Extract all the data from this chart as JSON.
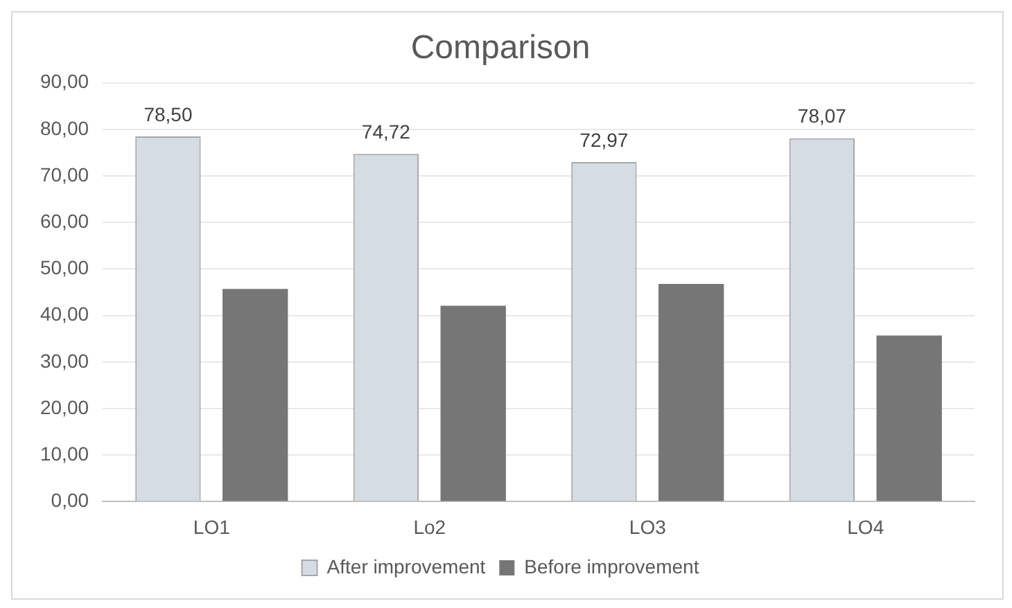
{
  "chart_data": {
    "type": "bar",
    "title": "Comparison",
    "categories": [
      "LO1",
      "Lo2",
      "LO3",
      "LO4"
    ],
    "series": [
      {
        "name": "After improvement",
        "color": "#d6dce4",
        "values": [
          78.5,
          74.72,
          72.97,
          78.07
        ],
        "value_labels": [
          "78,50",
          "74,72",
          "72,97",
          "78,07"
        ]
      },
      {
        "name": "Before improvement",
        "color": "#767676",
        "values": [
          45.7,
          42.1,
          46.8,
          35.7
        ]
      }
    ],
    "ylim": [
      0,
      90
    ],
    "yticks": [
      {
        "value": 0,
        "label": "0,00"
      },
      {
        "value": 10,
        "label": "10,00"
      },
      {
        "value": 20,
        "label": "20,00"
      },
      {
        "value": 30,
        "label": "30,00"
      },
      {
        "value": 40,
        "label": "40,00"
      },
      {
        "value": 50,
        "label": "50,00"
      },
      {
        "value": 60,
        "label": "60,00"
      },
      {
        "value": 70,
        "label": "70,00"
      },
      {
        "value": 80,
        "label": "80,00"
      },
      {
        "value": 90,
        "label": "90,00"
      }
    ],
    "grid": "y",
    "legend": "bottom"
  }
}
